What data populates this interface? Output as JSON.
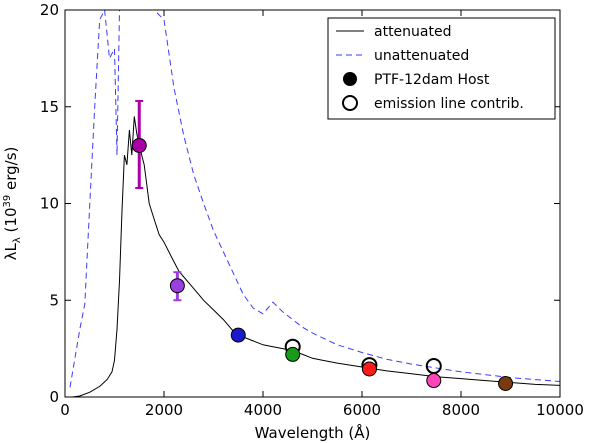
{
  "chart_data": {
    "type": "line",
    "title": "",
    "xlabel": "Wavelength (Å)",
    "ylabel_parts": [
      "λL",
      "λ",
      " (10",
      "39",
      " erg/s)"
    ],
    "xlim": [
      0,
      10000
    ],
    "ylim": [
      0,
      20
    ],
    "x_ticks": [
      0,
      2000,
      4000,
      6000,
      8000,
      10000
    ],
    "y_ticks": [
      0,
      5,
      10,
      15,
      20
    ],
    "x_tick_labels": [
      "0",
      "2000",
      "4000",
      "6000",
      "8000",
      "10000"
    ],
    "y_tick_labels": [
      "0",
      "5",
      "10",
      "15",
      "20"
    ],
    "grid": false,
    "legend_position": "top-right",
    "legend": [
      {
        "label": "attenuated",
        "style": "solid-line",
        "color": "#000000"
      },
      {
        "label": "unattenuated",
        "style": "dashed-line",
        "color": "#3b3bff"
      },
      {
        "label": "PTF-12dam Host",
        "style": "filled-circle",
        "color": "#000000"
      },
      {
        "label": "emission line contrib.",
        "style": "open-circle",
        "color": "#000000"
      }
    ],
    "series": [
      {
        "name": "attenuated",
        "color": "#000000",
        "dash": "none",
        "x": [
          150,
          300,
          500,
          700,
          850,
          950,
          1000,
          1050,
          1100,
          1150,
          1200,
          1250,
          1300,
          1350,
          1400,
          1450,
          1500,
          1550,
          1600,
          1650,
          1700,
          1800,
          1900,
          2000,
          2100,
          2200,
          2300,
          2400,
          2500,
          2600,
          2700,
          2800,
          3000,
          3200,
          3400,
          3600,
          3800,
          4000,
          4200,
          4400,
          4600,
          4800,
          5000,
          5200,
          5500,
          6000,
          6500,
          7000,
          7500,
          8000,
          8500,
          9000,
          9500,
          10000
        ],
        "y": [
          0.0,
          0.05,
          0.25,
          0.55,
          0.9,
          1.3,
          1.9,
          3.5,
          6.0,
          9.5,
          12.5,
          12.0,
          13.8,
          12.5,
          14.5,
          13.6,
          13.0,
          12.5,
          12.0,
          11.0,
          10.0,
          9.2,
          8.4,
          8.0,
          7.5,
          7.0,
          6.5,
          6.2,
          5.9,
          5.6,
          5.3,
          5.0,
          4.5,
          4.0,
          3.4,
          3.1,
          2.9,
          2.7,
          2.6,
          2.5,
          2.4,
          2.2,
          2.0,
          1.9,
          1.75,
          1.55,
          1.35,
          1.2,
          1.05,
          0.95,
          0.85,
          0.75,
          0.65,
          0.6
        ]
      },
      {
        "name": "unattenuated",
        "color": "#3b3bff",
        "dash": "6,4",
        "x": [
          100,
          200,
          300,
          400,
          500,
          600,
          700,
          800,
          900,
          1000,
          1050,
          1100,
          1200,
          1300,
          1400,
          1600,
          1800,
          2000,
          2200,
          2400,
          2600,
          2800,
          3000,
          3200,
          3400,
          3600,
          3800,
          4000,
          4200,
          4400,
          4600,
          4800,
          5000,
          5500,
          6000,
          6500,
          7000,
          7500,
          8000,
          8500,
          9000,
          9500,
          10000
        ],
        "y": [
          0.5,
          2.0,
          3.5,
          4.8,
          10.0,
          15.0,
          19.5,
          20.0,
          17.5,
          18.0,
          12.5,
          20.0,
          20.0,
          20.0,
          20.0,
          20.0,
          20.0,
          19.5,
          16.0,
          13.5,
          11.5,
          10.0,
          8.6,
          7.5,
          6.4,
          5.3,
          4.6,
          4.3,
          4.9,
          4.4,
          4.0,
          3.6,
          3.3,
          2.7,
          2.3,
          1.95,
          1.7,
          1.5,
          1.3,
          1.15,
          1.0,
          0.9,
          0.8
        ]
      }
    ],
    "host_points": [
      {
        "x": 1500,
        "y": 13.0,
        "color": "#aa00aa",
        "yerr": [
          10.8,
          15.3
        ]
      },
      {
        "x": 2270,
        "y": 5.75,
        "color": "#9a3fe0",
        "yerr": [
          5.0,
          6.45
        ]
      },
      {
        "x": 3500,
        "y": 3.2,
        "color": "#1a1acc",
        "yerr": null
      },
      {
        "x": 4600,
        "y": 2.2,
        "color": "#1a9a1a",
        "yerr": null
      },
      {
        "x": 6150,
        "y": 1.45,
        "color": "#ff1a1a",
        "yerr": null
      },
      {
        "x": 7450,
        "y": 0.85,
        "color": "#ff44bb",
        "yerr": null
      },
      {
        "x": 8900,
        "y": 0.7,
        "color": "#7a3a10",
        "yerr": null
      }
    ],
    "emission_points": [
      {
        "x": 4600,
        "y": 2.6
      },
      {
        "x": 6150,
        "y": 1.65
      },
      {
        "x": 7450,
        "y": 1.6
      }
    ]
  }
}
